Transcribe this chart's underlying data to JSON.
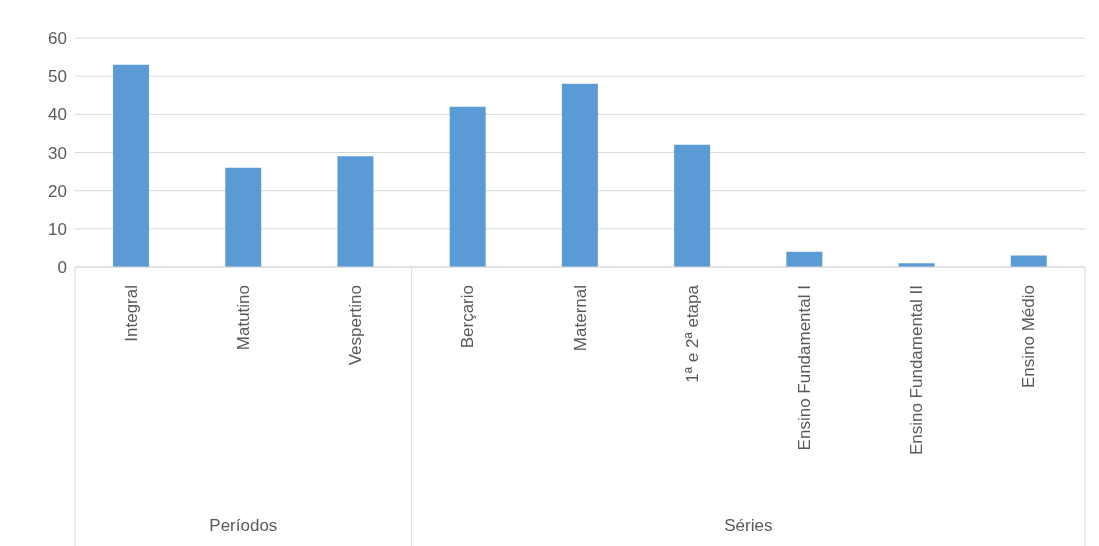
{
  "chart_data": {
    "type": "bar",
    "categories": [
      "Integral",
      "Matutino",
      "Vespertino",
      "Berçario",
      "Maternal",
      "1ª e 2ª etapa",
      "Ensino Fundamental I",
      "Ensino Fundamental II",
      "Ensino Médio"
    ],
    "values": [
      53,
      26,
      29,
      42,
      48,
      32,
      4,
      1,
      3
    ],
    "color": "#5b9bd5",
    "ylim": [
      0,
      60
    ],
    "yticks": [
      0,
      10,
      20,
      30,
      40,
      50,
      60
    ],
    "grid": "y",
    "annotations": [
      "Períodos",
      "Séries"
    ]
  }
}
